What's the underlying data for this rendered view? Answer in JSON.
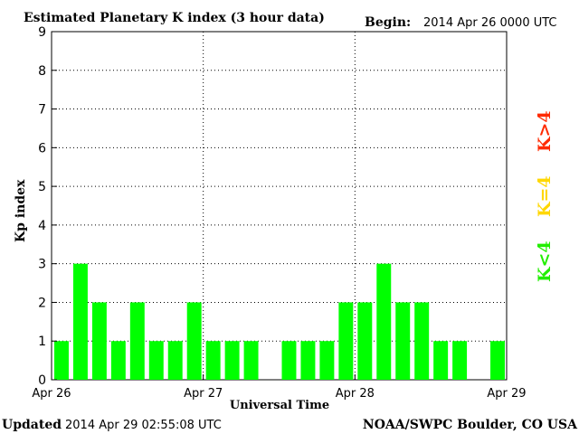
{
  "header": {
    "title": "Estimated Planetary K index (3 hour data)",
    "begin_label": "Begin:",
    "begin_value": "2014 Apr 26 0000 UTC"
  },
  "footer": {
    "updated_label": "Updated",
    "updated_value": "2014 Apr 29 02:55:08 UTC",
    "credit": "NOAA/SWPC Boulder, CO USA"
  },
  "legend": {
    "above": {
      "label": "K>4",
      "color": "#ff2a00"
    },
    "equal": {
      "label": "K=4",
      "color": "#ffd700"
    },
    "below": {
      "label": "K<4",
      "color": "#22ee00"
    }
  },
  "colors": {
    "bar": "#00ff00",
    "grid": "#000000",
    "axis": "#000000"
  },
  "chart_data": {
    "type": "bar",
    "title": "Estimated Planetary K index (3 hour data)",
    "xlabel": "Universal Time",
    "ylabel": "Kp index",
    "ylim": [
      0,
      9
    ],
    "yticks": [
      "0",
      "1",
      "2",
      "3",
      "4",
      "5",
      "6",
      "7",
      "8",
      "9"
    ],
    "xticks": [
      "Apr 26",
      "Apr 27",
      "Apr 28",
      "Apr 29"
    ],
    "grid": true,
    "bin_hours": 3,
    "values": [
      1,
      3,
      2,
      1,
      2,
      1,
      1,
      2,
      1,
      1,
      1,
      0,
      1,
      1,
      1,
      2,
      2,
      3,
      2,
      2,
      1,
      1,
      0,
      1
    ]
  }
}
